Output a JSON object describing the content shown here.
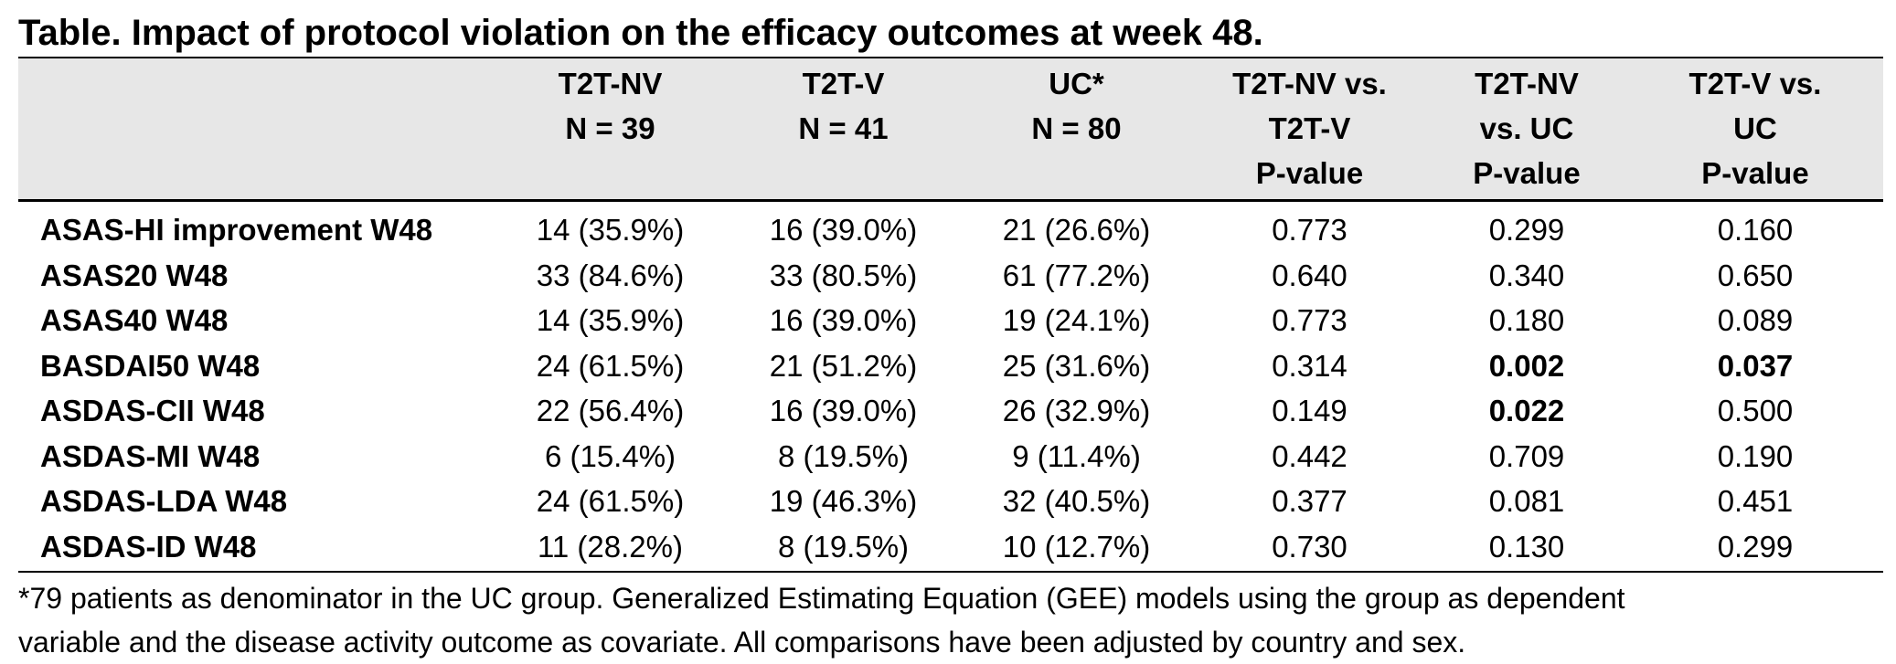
{
  "title": "Table. Impact of protocol violation on the efficacy outcomes at week 48.",
  "columns": [
    {
      "lines": [
        "",
        "",
        ""
      ]
    },
    {
      "lines": [
        "T2T-NV",
        "N = 39",
        ""
      ]
    },
    {
      "lines": [
        "T2T-V",
        "N = 41",
        ""
      ]
    },
    {
      "lines": [
        "UC*",
        "N = 80",
        ""
      ]
    },
    {
      "lines": [
        "T2T-NV vs.",
        "T2T-V",
        "P-value"
      ]
    },
    {
      "lines": [
        "T2T-NV",
        "vs. UC",
        "P-value"
      ]
    },
    {
      "lines": [
        "T2T-V vs.",
        "UC",
        "P-value"
      ]
    }
  ],
  "rows": [
    {
      "label": "ASAS-HI improvement W48",
      "cells": [
        "14 (35.9%)",
        "16 (39.0%)",
        "21 (26.6%)",
        "0.773",
        "0.299",
        "0.160"
      ],
      "bold": [
        false,
        false,
        false,
        false,
        false,
        false
      ]
    },
    {
      "label": "ASAS20 W48",
      "cells": [
        "33 (84.6%)",
        "33 (80.5%)",
        "61 (77.2%)",
        "0.640",
        "0.340",
        "0.650"
      ],
      "bold": [
        false,
        false,
        false,
        false,
        false,
        false
      ]
    },
    {
      "label": "ASAS40 W48",
      "cells": [
        "14 (35.9%)",
        "16 (39.0%)",
        "19 (24.1%)",
        "0.773",
        "0.180",
        "0.089"
      ],
      "bold": [
        false,
        false,
        false,
        false,
        false,
        false
      ]
    },
    {
      "label": "BASDAI50 W48",
      "cells": [
        "24 (61.5%)",
        "21 (51.2%)",
        "25 (31.6%)",
        "0.314",
        "0.002",
        "0.037"
      ],
      "bold": [
        false,
        false,
        false,
        false,
        true,
        true
      ]
    },
    {
      "label": "ASDAS-CII W48",
      "cells": [
        "22 (56.4%)",
        "16 (39.0%)",
        "26 (32.9%)",
        "0.149",
        "0.022",
        "0.500"
      ],
      "bold": [
        false,
        false,
        false,
        false,
        true,
        false
      ]
    },
    {
      "label": "ASDAS-MI W48",
      "cells": [
        "6 (15.4%)",
        "8 (19.5%)",
        "9 (11.4%)",
        "0.442",
        "0.709",
        "0.190"
      ],
      "bold": [
        false,
        false,
        false,
        false,
        false,
        false
      ]
    },
    {
      "label": "ASDAS-LDA W48",
      "cells": [
        "24 (61.5%)",
        "19 (46.3%)",
        "32 (40.5%)",
        "0.377",
        "0.081",
        "0.451"
      ],
      "bold": [
        false,
        false,
        false,
        false,
        false,
        false
      ]
    },
    {
      "label": "ASDAS-ID W48",
      "cells": [
        "11 (28.2%)",
        "8 (19.5%)",
        "10 (12.7%)",
        "0.730",
        "0.130",
        "0.299"
      ],
      "bold": [
        false,
        false,
        false,
        false,
        false,
        false
      ]
    }
  ],
  "footnote": {
    "line1": "*79 patients as denominator in the UC group. Generalized Estimating Equation (GEE) models using the group as dependent",
    "line2": "variable and the disease activity outcome as covariate. All comparisons have been adjusted by country and sex."
  }
}
